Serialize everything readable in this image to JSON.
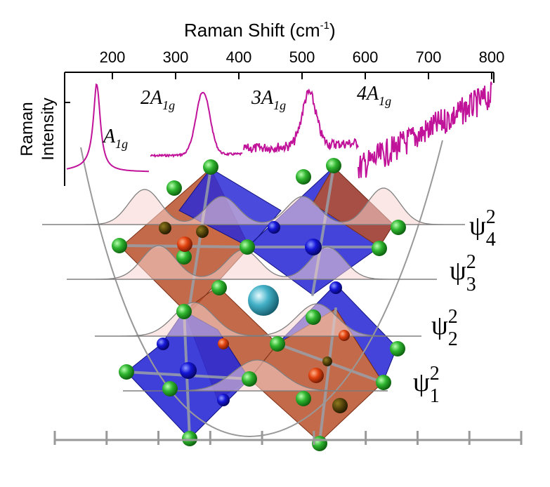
{
  "axis": {
    "title_main": "Raman Shift (cm",
    "title_sup": "-1",
    "title_close": ")",
    "ticks": [
      "200",
      "300",
      "400",
      "500",
      "600",
      "700",
      "800"
    ],
    "ylabel_line1": "Raman",
    "ylabel_line2": "Intensity"
  },
  "peaks": [
    {
      "coef": "",
      "symbol": "A",
      "sub": "1g"
    },
    {
      "coef": "2",
      "symbol": "A",
      "sub": "1g"
    },
    {
      "coef": "3",
      "symbol": "A",
      "sub": "1g"
    },
    {
      "coef": "4",
      "symbol": "A",
      "sub": "1g"
    }
  ],
  "wavefunctions": [
    {
      "psi": "ψ",
      "sup": "2",
      "sub": "4"
    },
    {
      "psi": "ψ",
      "sup": "2",
      "sub": "3"
    },
    {
      "psi": "ψ",
      "sup": "2",
      "sub": "2"
    },
    {
      "psi": "ψ",
      "sup": "2",
      "sub": "1"
    }
  ],
  "colors": {
    "spectrum": "#c0139a",
    "octahedron_blue": "#2a2ad6",
    "octahedron_orange": "#b8502a",
    "halide_atom": "#22aa22",
    "metal_blue_atom": "#1010d0",
    "metal_red_atom": "#e04010",
    "cation_atom": "#3aa7c0",
    "potential_curve": "#999999"
  }
}
